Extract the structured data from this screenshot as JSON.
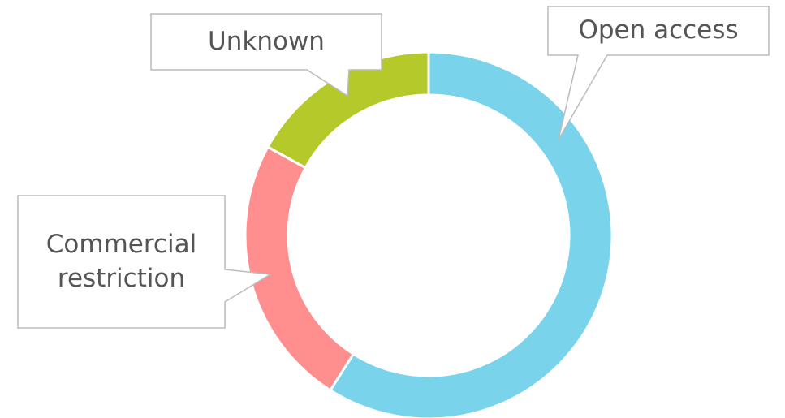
{
  "chart_data": {
    "type": "donut",
    "categories": [
      "Open access",
      "Commercial restriction",
      "Unknown"
    ],
    "values": [
      59,
      24,
      17
    ],
    "colors": [
      "#79d3ea",
      "#ff8e8e",
      "#b5c92b"
    ]
  }
}
